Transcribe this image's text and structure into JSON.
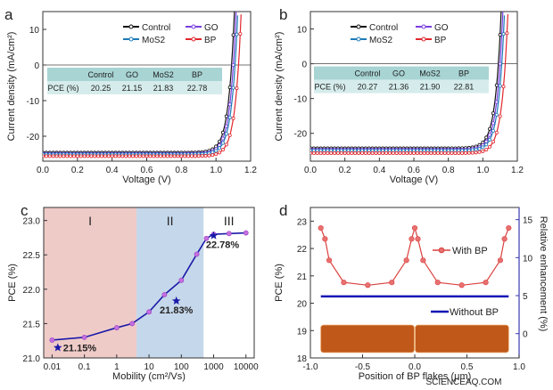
{
  "chart_data": [
    {
      "panel": "a",
      "type": "line",
      "xlabel": "Voltage (V)",
      "ylabel": "Current density (mA/cm²)",
      "xlim": [
        0,
        1.2
      ],
      "ylim": [
        -27,
        15
      ],
      "xticks": [
        "0.0",
        "0.2",
        "0.4",
        "0.6",
        "0.8",
        "1.0",
        "1.2"
      ],
      "xtick_values": [
        0,
        0.2,
        0.4,
        0.6,
        0.8,
        1.0,
        1.2
      ],
      "yticks": [
        "10",
        "0",
        "-10",
        "-20"
      ],
      "ytick_values": [
        10,
        0,
        -10,
        -20
      ],
      "legend_placement": "top",
      "series": [
        {
          "name": "Control",
          "color": "#111111",
          "jsc": 24.6,
          "voc": 1.09
        },
        {
          "name": "GO",
          "color": "#7a3fe0",
          "jsc": 24.9,
          "voc": 1.1
        },
        {
          "name": "MoS2",
          "color": "#1d7bb8",
          "jsc": 25.1,
          "voc": 1.11
        },
        {
          "name": "BP",
          "color": "#e0282e",
          "jsc": 25.6,
          "voc": 1.13
        }
      ],
      "table": {
        "headers": [
          "",
          "Control",
          "GO",
          "MoS2",
          "BP"
        ],
        "row_label": "PCE (%)",
        "values": [
          "20.25",
          "21.15",
          "21.83",
          "22.78"
        ]
      }
    },
    {
      "panel": "b",
      "type": "line",
      "xlabel": "Voltage (V)",
      "ylabel": "Current density (mA/cm²)",
      "xlim": [
        0,
        1.2
      ],
      "ylim": [
        -28,
        15
      ],
      "xticks": [
        "0.0",
        "0.2",
        "0.4",
        "0.6",
        "0.8",
        "1.0",
        "1.2"
      ],
      "xtick_values": [
        0,
        0.2,
        0.4,
        0.6,
        0.8,
        1.0,
        1.2
      ],
      "yticks": [
        "10",
        "0",
        "-10",
        "-20"
      ],
      "ytick_values": [
        10,
        0,
        -10,
        -20
      ],
      "legend_placement": "top",
      "series": [
        {
          "name": "Control",
          "color": "#111111",
          "jsc": 24.3,
          "voc": 1.09
        },
        {
          "name": "GO",
          "color": "#7a3fe0",
          "jsc": 24.7,
          "voc": 1.1
        },
        {
          "name": "MoS2",
          "color": "#1d7bb8",
          "jsc": 25.0,
          "voc": 1.11
        },
        {
          "name": "BP",
          "color": "#e0282e",
          "jsc": 25.7,
          "voc": 1.13
        }
      ],
      "table": {
        "headers": [
          "",
          "Control",
          "GO",
          "MoS2",
          "BP"
        ],
        "row_label": "PCE (%)",
        "values": [
          "20.27",
          "21.36",
          "21.90",
          "22.81"
        ]
      }
    },
    {
      "panel": "c",
      "type": "line",
      "xscale": "log",
      "xlabel": "Mobility (cm²/Vs)",
      "ylabel": "PCE (%)",
      "xlim": [
        0.0055,
        18000
      ],
      "ylim": [
        21.0,
        23.19
      ],
      "xticks": [
        "0.01",
        "0.1",
        "1",
        "10",
        "100",
        "1000",
        "10000"
      ],
      "xtick_values": [
        0.01,
        0.1,
        1,
        10,
        100,
        1000,
        10000
      ],
      "yticks": [
        "23.0",
        "22.5",
        "22.0",
        "21.5",
        "21.0"
      ],
      "ytick_values": [
        23.0,
        22.5,
        22.0,
        21.5,
        21.0
      ],
      "regions": [
        {
          "label": "I",
          "from": 0.0055,
          "to": 4.1,
          "color": "#efcbc8"
        },
        {
          "label": "II",
          "from": 4.1,
          "to": 490,
          "color": "#c5d7ea"
        },
        {
          "label": "III",
          "from": 490,
          "to": 18000,
          "color": "#ffffff"
        }
      ],
      "series": [
        {
          "color": "#1a1aa8",
          "marker_color": "#c36fe0",
          "x": [
            0.01,
            0.1,
            1,
            3,
            10,
            30,
            100,
            300,
            600,
            1000,
            3000,
            10000
          ],
          "y": [
            21.26,
            21.3,
            21.44,
            21.5,
            21.67,
            21.92,
            22.13,
            22.51,
            22.74,
            22.8,
            22.81,
            22.82
          ]
        }
      ],
      "stars": [
        {
          "x": 0.015,
          "y": 21.15,
          "label": "21.15%"
        },
        {
          "x": 70,
          "y": 21.83,
          "label": "21.83%"
        },
        {
          "x": 1000,
          "y": 22.78,
          "label": "22.78%"
        }
      ]
    },
    {
      "panel": "d",
      "type": "line",
      "xlabel": "Position of BP flakes (μm)",
      "ylabel": "PCE (%)",
      "y2label": "Relative enhancement (%)",
      "xlim": [
        -1.0,
        1.0
      ],
      "ylim": [
        18,
        23.5
      ],
      "y2lim": [
        -3.2,
        16.6
      ],
      "xticks": [
        "-1.0",
        "-0.5",
        "0.0",
        "0.5",
        "1.0"
      ],
      "xtick_values": [
        -1.0,
        -0.5,
        0.0,
        0.5,
        1.0
      ],
      "yticks": [
        "23",
        "22",
        "21",
        "20",
        "19",
        "18"
      ],
      "ytick_values": [
        23,
        22,
        21,
        20,
        19,
        18
      ],
      "y2ticks": [
        "15",
        "10",
        "5",
        "0"
      ],
      "y2tick_values": [
        15,
        10,
        5,
        0
      ],
      "legend_placement": "right",
      "series": [
        {
          "name": "With BP",
          "color": "#d9423f",
          "x": [
            -0.9,
            -0.86,
            -0.82,
            -0.68,
            -0.45,
            -0.22,
            -0.08,
            -0.03,
            0,
            0.03,
            0.08,
            0.22,
            0.45,
            0.68,
            0.82,
            0.86,
            0.9
          ],
          "y": [
            22.75,
            22.35,
            21.57,
            20.76,
            20.66,
            20.76,
            21.57,
            22.35,
            22.75,
            22.35,
            21.57,
            20.76,
            20.66,
            20.76,
            21.57,
            22.35,
            22.75
          ]
        },
        {
          "name": "Without BP",
          "color": "#1414b4",
          "x": [
            -0.9,
            0.9
          ],
          "y": [
            20.25,
            20.25
          ]
        }
      ],
      "blocks": [
        {
          "from": -0.9,
          "to": -0.005,
          "ymin": 18.2,
          "ymax": 19.2,
          "color": "#c0581a"
        },
        {
          "from": 0.005,
          "to": 0.9,
          "ymin": 18.2,
          "ymax": 19.2,
          "color": "#c0581a"
        }
      ],
      "axis2_color": "#3a3ab0"
    }
  ],
  "watermark": "SCIENCEAQ.COM"
}
